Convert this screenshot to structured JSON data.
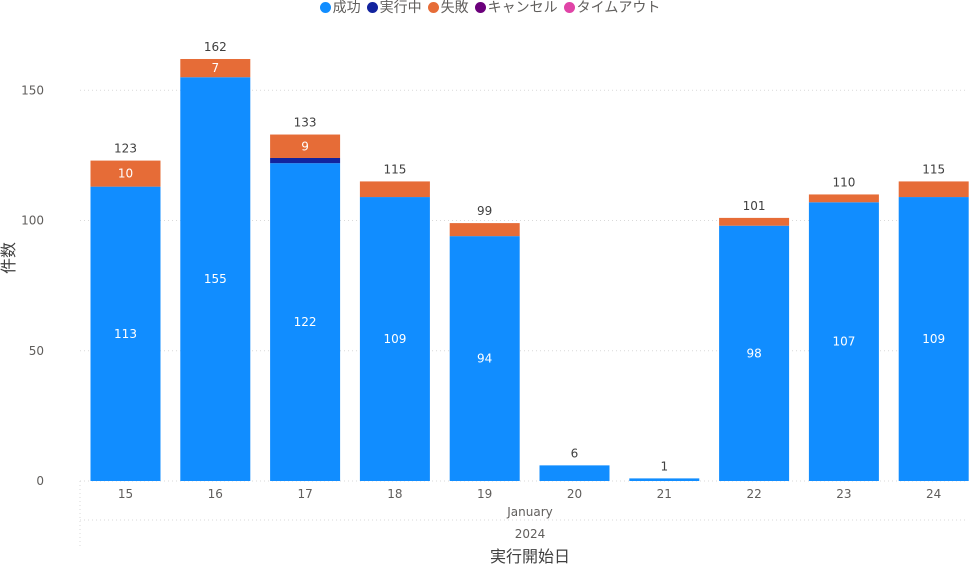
{
  "chart_data": {
    "type": "bar",
    "stacked": true,
    "categories": [
      "15",
      "16",
      "17",
      "18",
      "19",
      "20",
      "21",
      "22",
      "23",
      "24"
    ],
    "month_label": "January",
    "year_label": "2024",
    "xlabel": "実行開始日",
    "ylabel": "件数",
    "ylim": [
      0,
      160
    ],
    "yticks": [
      0,
      50,
      100,
      150
    ],
    "grid": true,
    "legend_position": "top-center",
    "series": [
      {
        "name": "成功",
        "color": "#118dff",
        "values": [
          113,
          155,
          122,
          109,
          94,
          6,
          1,
          98,
          107,
          109
        ]
      },
      {
        "name": "実行中",
        "color": "#12239e",
        "values": [
          0,
          0,
          2,
          0,
          0,
          0,
          0,
          0,
          0,
          0
        ]
      },
      {
        "name": "失敗",
        "color": "#e66c37",
        "values": [
          10,
          7,
          9,
          6,
          5,
          0,
          0,
          3,
          3,
          6
        ]
      },
      {
        "name": "キャンセル",
        "color": "#6b007b",
        "values": [
          0,
          0,
          0,
          0,
          0,
          0,
          0,
          0,
          0,
          0
        ]
      },
      {
        "name": "タイムアウト",
        "color": "#e044a7",
        "values": [
          0,
          0,
          0,
          0,
          0,
          0,
          0,
          0,
          0,
          0
        ]
      }
    ],
    "totals": [
      123,
      162,
      133,
      115,
      99,
      6,
      1,
      101,
      110,
      115
    ],
    "inside_labels": [
      {
        "series": 0,
        "labels": [
          "113",
          "155",
          "122",
          "109",
          "94",
          "",
          "",
          "98",
          "107",
          "109"
        ]
      },
      {
        "series": 2,
        "labels": [
          "10",
          "7",
          "9",
          "",
          "",
          "",
          "",
          "",
          "",
          ""
        ]
      }
    ]
  }
}
